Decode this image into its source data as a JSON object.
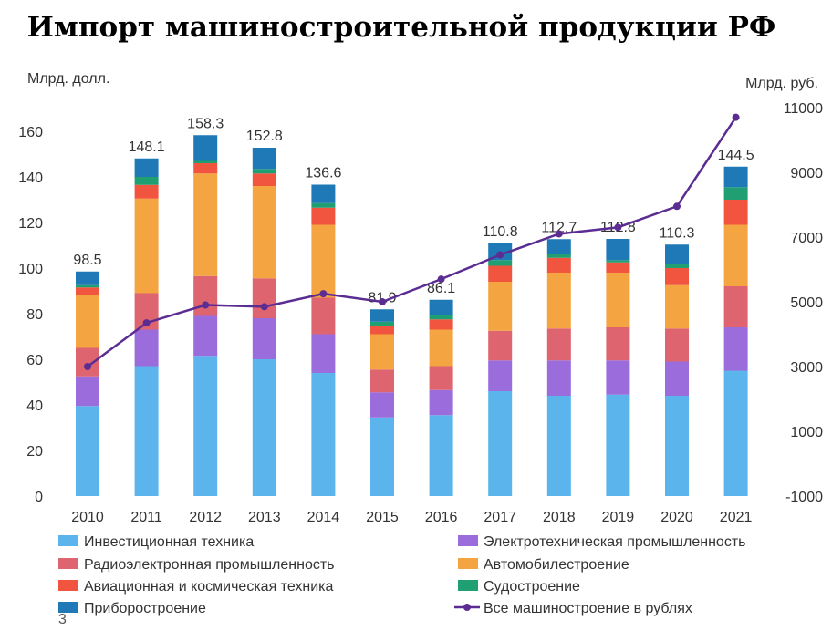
{
  "page_number": "3",
  "chart_data": {
    "type": "bar",
    "stacked": true,
    "title": "Импорт машиностроительной продукции РФ",
    "y_left_unit": "Млрд. долл.",
    "y_right_unit": "Млрд. руб.",
    "ylim_left": [
      0,
      160
    ],
    "y_left_ticks": [
      "0",
      "20",
      "40",
      "60",
      "80",
      "100",
      "120",
      "140",
      "160"
    ],
    "ylim_right": [
      -1000,
      11000
    ],
    "y_right_ticks": [
      "-1000",
      "1000",
      "3000",
      "5000",
      "7000",
      "9000",
      "11000"
    ],
    "categories": [
      "2010",
      "2011",
      "2012",
      "2013",
      "2014",
      "2015",
      "2016",
      "2017",
      "2018",
      "2019",
      "2020",
      "2021"
    ],
    "totals": [
      "98.5",
      "148.1",
      "158.3",
      "152.8",
      "136.6",
      "81.9",
      "86.1",
      "110.8",
      "112.7",
      "112.8",
      "110.3",
      "144.5"
    ],
    "series": [
      {
        "name": "Инвестиционная техника",
        "color": "#5bb4ec",
        "values": [
          39.5,
          57.0,
          61.5,
          60.0,
          54.0,
          34.5,
          35.5,
          46.0,
          44.0,
          44.5,
          44.0,
          55.0
        ]
      },
      {
        "name": "Электротехническая промышленность",
        "color": "#9b6cdc",
        "values": [
          13.0,
          16.0,
          17.5,
          18.0,
          17.0,
          11.0,
          11.0,
          13.5,
          15.5,
          15.0,
          15.0,
          19.0
        ]
      },
      {
        "name": "Радиоэлектронная промышленность",
        "color": "#de6470",
        "values": [
          12.5,
          16.0,
          17.5,
          17.5,
          16.0,
          10.0,
          10.5,
          13.0,
          14.0,
          14.5,
          14.5,
          18.0
        ]
      },
      {
        "name": "Автомобилестроение",
        "color": "#f4a542",
        "values": [
          23.0,
          41.5,
          45.0,
          40.5,
          32.0,
          15.5,
          16.0,
          21.5,
          24.5,
          24.0,
          19.0,
          27.0
        ]
      },
      {
        "name": "Авиационная и космическая техника",
        "color": "#f2553f",
        "values": [
          3.5,
          6.0,
          4.5,
          5.5,
          7.5,
          3.5,
          4.5,
          7.0,
          6.5,
          4.5,
          7.5,
          11.0
        ]
      },
      {
        "name": "Судостроение",
        "color": "#1f9f72",
        "values": [
          1.0,
          3.5,
          1.0,
          2.0,
          2.0,
          2.0,
          2.0,
          2.5,
          1.5,
          1.0,
          2.0,
          5.5
        ]
      },
      {
        "name": "Приборостроение",
        "color": "#1f79b6",
        "values": [
          6.0,
          8.1,
          11.3,
          9.3,
          8.1,
          5.4,
          6.6,
          7.3,
          6.7,
          9.3,
          8.3,
          9.0
        ]
      }
    ],
    "line": {
      "name": "Все машиностроение в рублях",
      "color": "#5b2d92",
      "axis": "right",
      "values": [
        3000,
        4350,
        4900,
        4850,
        5250,
        5000,
        5700,
        6450,
        7100,
        7300,
        7950,
        10700
      ]
    },
    "legend_position": "bottom",
    "grid": false
  }
}
